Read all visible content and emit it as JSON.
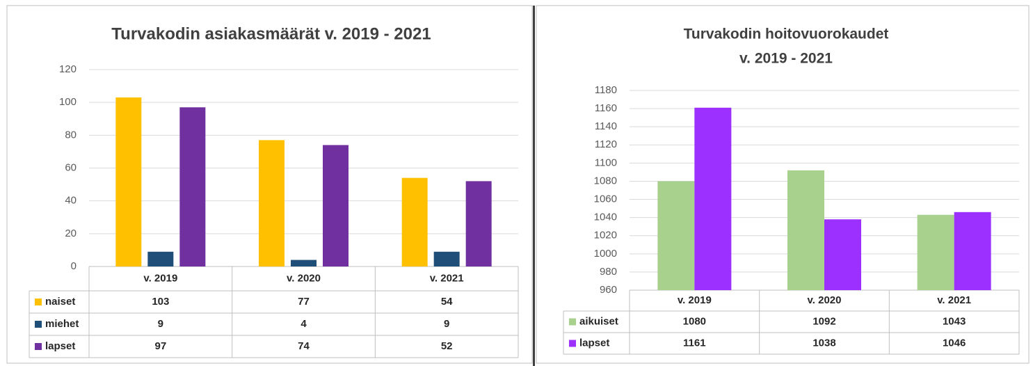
{
  "chart_data": [
    {
      "type": "bar",
      "title": "Turvakodin asiakasmäärät v. 2019 - 2021",
      "categories": [
        "v. 2019",
        "v. 2020",
        "v. 2021"
      ],
      "series": [
        {
          "name": "naiset",
          "color": "#ffc000",
          "values": [
            103,
            77,
            54
          ]
        },
        {
          "name": "miehet",
          "color": "#1f4e79",
          "values": [
            9,
            4,
            9
          ]
        },
        {
          "name": "lapset",
          "color": "#7030a0",
          "values": [
            97,
            74,
            52
          ]
        }
      ],
      "ylim": [
        0,
        120
      ],
      "yticks": [
        0,
        20,
        40,
        60,
        80,
        100,
        120
      ],
      "grid": true
    },
    {
      "type": "bar",
      "title": "Turvakodin hoitovuorokaudet",
      "subtitle": "v. 2019 - 2021",
      "categories": [
        "v. 2019",
        "v. 2020",
        "v. 2021"
      ],
      "series": [
        {
          "name": "aikuiset",
          "color": "#a9d18e",
          "values": [
            1080,
            1092,
            1043
          ]
        },
        {
          "name": "lapset",
          "color": "#9b30ff",
          "values": [
            1161,
            1038,
            1046
          ]
        }
      ],
      "ylim": [
        960,
        1180
      ],
      "yticks": [
        960,
        980,
        1000,
        1020,
        1040,
        1060,
        1080,
        1100,
        1120,
        1140,
        1160,
        1180
      ],
      "grid": true
    }
  ]
}
